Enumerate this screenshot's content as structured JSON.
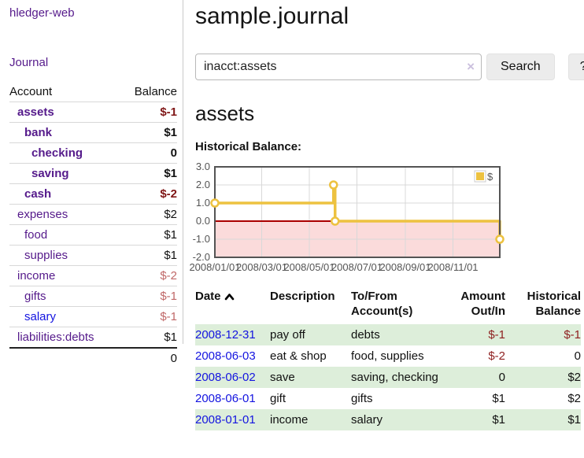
{
  "sidebar": {
    "brand": "hledger-web",
    "nav": {
      "journal": "Journal"
    },
    "accounts_table": {
      "col_account": "Account",
      "col_balance": "Balance",
      "rows": [
        {
          "name": "assets",
          "balance": "$-1"
        },
        {
          "name": "bank",
          "balance": "$1"
        },
        {
          "name": "checking",
          "balance": "0"
        },
        {
          "name": "saving",
          "balance": "$1"
        },
        {
          "name": "cash",
          "balance": "$-2"
        },
        {
          "name": "expenses",
          "balance": "$2"
        },
        {
          "name": "food",
          "balance": "$1"
        },
        {
          "name": "supplies",
          "balance": "$1"
        },
        {
          "name": "income",
          "balance": "$-2"
        },
        {
          "name": "gifts",
          "balance": "$-1"
        },
        {
          "name": "salary",
          "balance": "$-1"
        },
        {
          "name": "liabilities:debts",
          "balance": "$1"
        }
      ],
      "total": "0"
    }
  },
  "header": {
    "title": "sample.journal"
  },
  "search": {
    "query": "inacct:assets",
    "clear_icon": "×",
    "search_label": "Search",
    "help_label": "?"
  },
  "account_page": {
    "heading": "assets",
    "chart_label": "Historical Balance:"
  },
  "chart_data": {
    "type": "line",
    "title": "Historical Balance",
    "step": true,
    "series": [
      {
        "name": "$",
        "points": [
          [
            "2008-01-01",
            1
          ],
          [
            "2008-06-01",
            2
          ],
          [
            "2008-06-03",
            0
          ],
          [
            "2008-12-31",
            -1
          ]
        ]
      }
    ],
    "x_domain": [
      "2008-01-01",
      "2008-12-31"
    ],
    "x_ticks": [
      "2008/01/01",
      "2008/03/01",
      "2008/05/01",
      "2008/07/01",
      "2008/09/01",
      "2008/11/01"
    ],
    "y_ticks": [
      "3.0",
      "2.0",
      "1.0",
      "0.0",
      "-1.0",
      "-2.0"
    ],
    "ylim": [
      -2,
      3
    ],
    "legend": {
      "label": "$",
      "position": "top-right"
    },
    "grid": true,
    "colors": {
      "line": "#EDC240",
      "point_fill": "#ffffff",
      "negative_region": "#fbdbdb",
      "zero_line": "#aa0000",
      "gridline": "#d8d8d8",
      "border": "#545454"
    }
  },
  "register": {
    "columns": {
      "date": "Date",
      "description": "Description",
      "tofrom": "To/From Account(s)",
      "amount": "Amount Out/In",
      "balance": "Historical Balance"
    },
    "rows": [
      {
        "date": "2008-12-31",
        "description": "pay off",
        "accounts": "debts",
        "amount": "$-1",
        "balance": "$-1"
      },
      {
        "date": "2008-06-03",
        "description": "eat & shop",
        "accounts": "food, supplies",
        "amount": "$-2",
        "balance": "0"
      },
      {
        "date": "2008-06-02",
        "description": "save",
        "accounts": "saving, checking",
        "amount": "0",
        "balance": "$2"
      },
      {
        "date": "2008-06-01",
        "description": "gift",
        "accounts": "gifts",
        "amount": "$1",
        "balance": "$2"
      },
      {
        "date": "2008-01-01",
        "description": "income",
        "accounts": "salary",
        "amount": "$1",
        "balance": "$1"
      }
    ]
  }
}
